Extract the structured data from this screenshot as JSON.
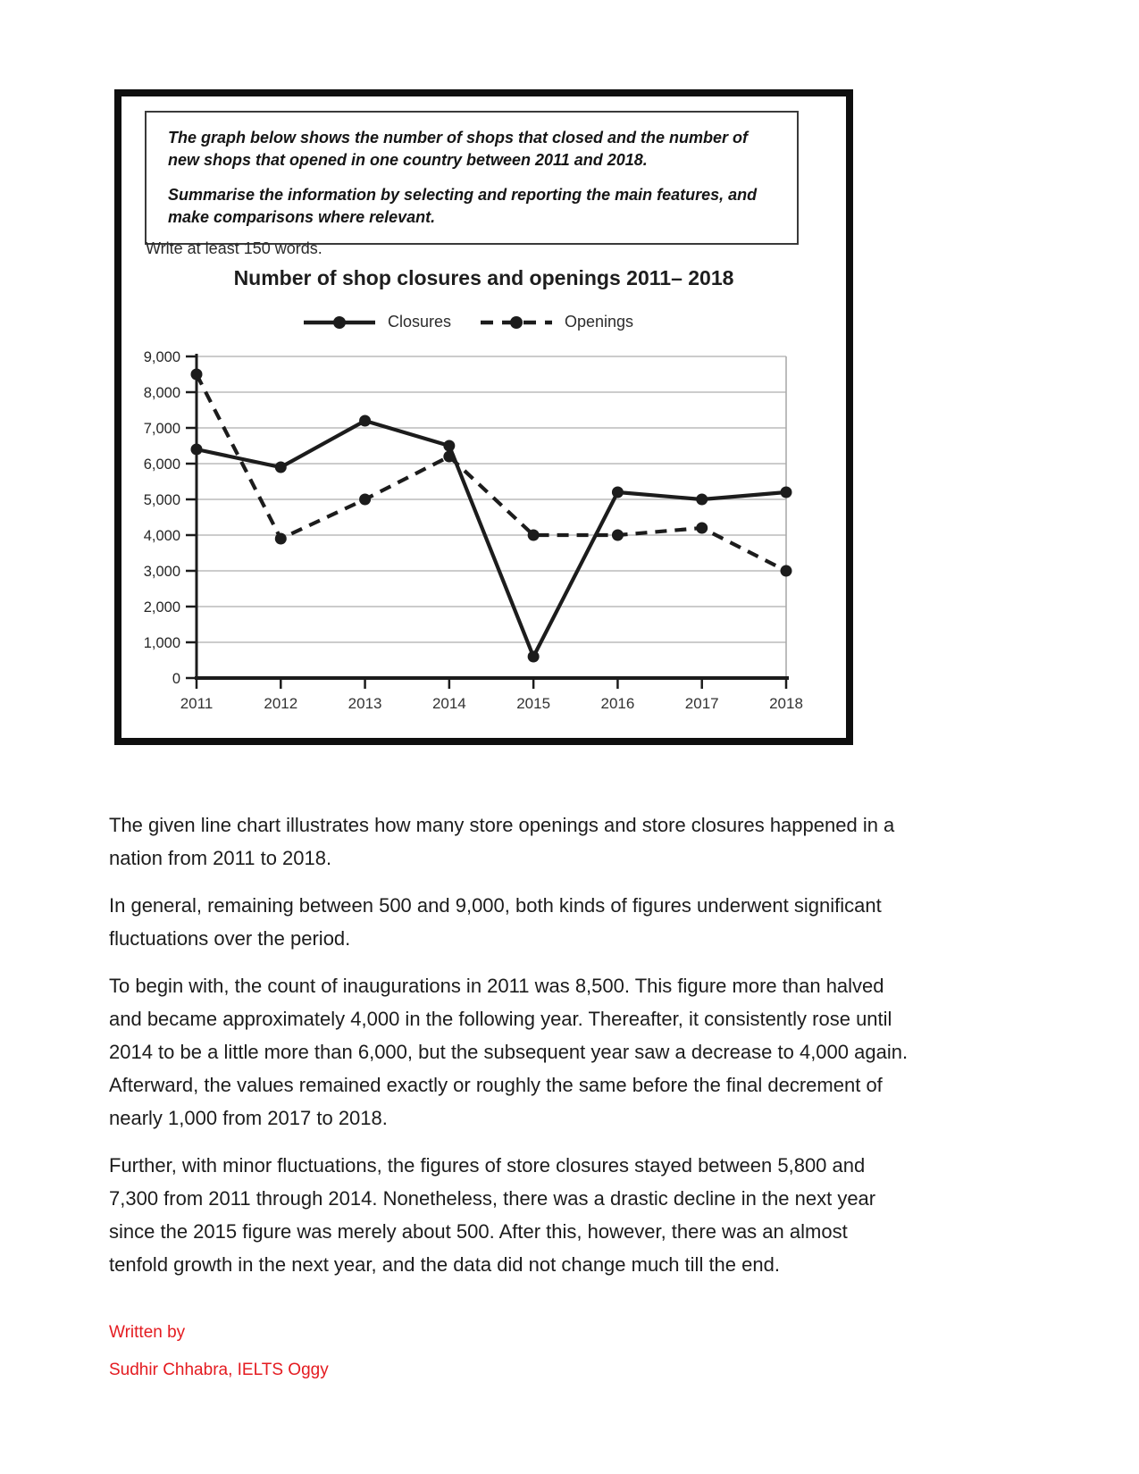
{
  "task_box": {
    "paragraph1": "The graph below shows the number of shops that closed and the number of\nnew shops that opened in one country between 2011 and 2018.",
    "paragraph2": "Summarise the information by selecting and reporting the main features, and\nmake comparisons where relevant."
  },
  "write_note": "Write at least 150 words.",
  "chart_data": {
    "type": "line",
    "title": "Number of shop closures and openings 2011– 2018",
    "categories": [
      "2011",
      "2012",
      "2013",
      "2014",
      "2015",
      "2016",
      "2017",
      "2018"
    ],
    "series": [
      {
        "name": "Closures",
        "style": "solid",
        "values": [
          6400,
          5900,
          7200,
          6500,
          600,
          5200,
          5000,
          5200
        ]
      },
      {
        "name": "Openings",
        "style": "dashed",
        "values": [
          8500,
          3900,
          5000,
          6200,
          4000,
          4000,
          4200,
          3000
        ]
      }
    ],
    "xlabel": "",
    "ylabel": "",
    "ylim": [
      0,
      9000
    ],
    "ytick_step": 1000,
    "ytick_labels": [
      "0",
      "1,000",
      "2,000",
      "3,000",
      "4,000",
      "5,000",
      "6,000",
      "7,000",
      "8,000",
      "9,000"
    ],
    "grid": true,
    "legend_position": "top",
    "line_color": "#1c1c1c",
    "grid_color": "#bcbcbc"
  },
  "essay": {
    "paragraphs": [
      "The given line chart illustrates how many store openings and store closures happened in a\nnation from 2011 to 2018.",
      "In general, remaining between 500 and 9,000, both kinds of figures underwent significant\nfluctuations over the period.",
      "To begin with, the count of inaugurations in 2011 was 8,500. This figure more than halved\nand became approximately 4,000 in the following year. Thereafter, it consistently rose until\n2014 to be a little more than 6,000, but the subsequent year saw a decrease to 4,000 again.\nAfterward, the values remained exactly or roughly the same before the final decrement of\nnearly 1,000 from 2017 to 2018.",
      "Further, with minor fluctuations, the figures of store closures stayed between 5,800 and\n7,300 from 2011 through 2014. Nonetheless, there was a drastic decline in the next year\nsince the 2015 figure was merely about 500. After this, however, there was an almost\ntenfold growth in the next year, and the data did not change much till the end."
    ]
  },
  "footer": {
    "written_by": "Written by",
    "author": "Sudhir Chhabra, IELTS Oggy",
    "color": "#e41b20"
  }
}
